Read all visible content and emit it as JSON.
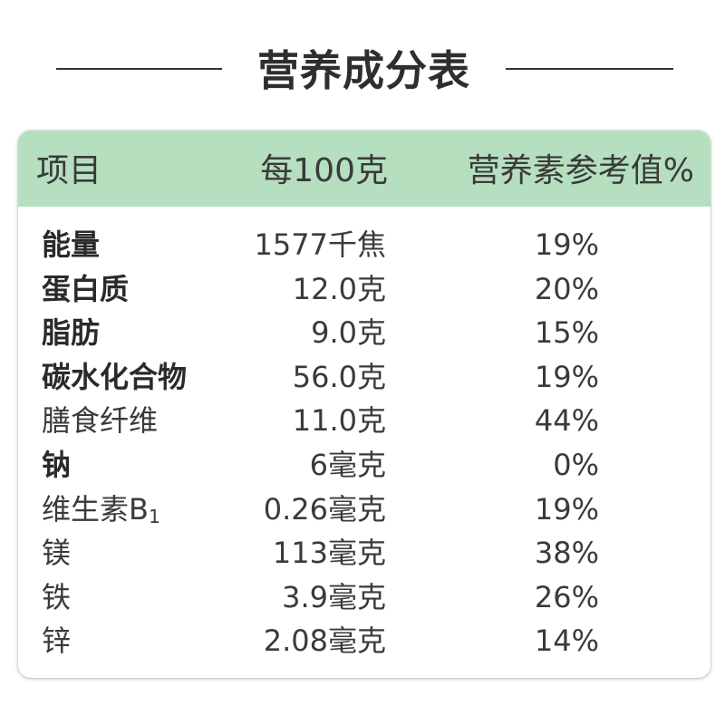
{
  "title": "营养成分表",
  "header": {
    "item": "项目",
    "per_100g": "每100克",
    "nrv": "营养素参考值%"
  },
  "rows": [
    {
      "name": "能量",
      "value": "1577千焦",
      "nrv": "19%",
      "bold": true
    },
    {
      "name": "蛋白质",
      "value": "12.0克",
      "nrv": "20%",
      "bold": true
    },
    {
      "name": "脂肪",
      "value": "9.0克",
      "nrv": "15%",
      "bold": true
    },
    {
      "name": "碳水化合物",
      "value": "56.0克",
      "nrv": "19%",
      "bold": true
    },
    {
      "name": "膳食纤维",
      "value": "11.0克",
      "nrv": "44%",
      "bold": false
    },
    {
      "name": "钠",
      "value": "6毫克",
      "nrv": "0%",
      "bold": true
    },
    {
      "name": "维生素B",
      "name_subscript": "1",
      "value": "0.26毫克",
      "nrv": "19%",
      "bold": false
    },
    {
      "name": "镁",
      "value": "113毫克",
      "nrv": "38%",
      "bold": false
    },
    {
      "name": "铁",
      "value": "3.9毫克",
      "nrv": "26%",
      "bold": false
    },
    {
      "name": "锌",
      "value": "2.08毫克",
      "nrv": "14%",
      "bold": false
    }
  ],
  "colors": {
    "header_bg": "#b5dfbf",
    "text": "#3a3a3a"
  }
}
